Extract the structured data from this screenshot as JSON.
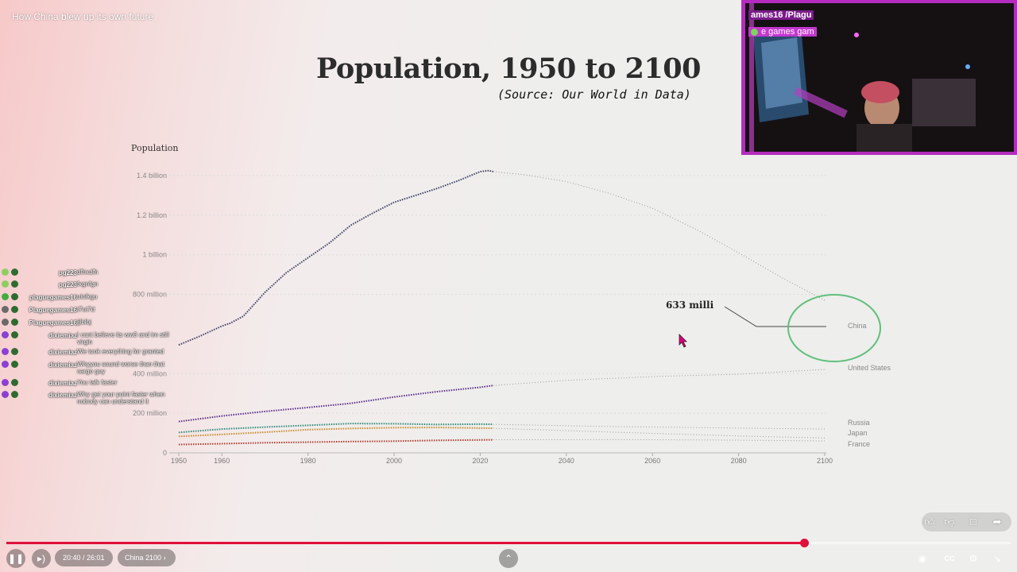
{
  "video": {
    "title": "How China blew up its own future",
    "time": "20:40 / 26:01",
    "chapter": "China 2100",
    "progress_fraction": 0.794
  },
  "slide": {
    "title": "Population, 1950 to 2100",
    "source": "(Source: Our World in Data)",
    "annotation": "633 milli"
  },
  "chart_data": {
    "type": "line",
    "ylabel": "Population",
    "x_ticks": [
      "1950",
      "1960",
      "1980",
      "2000",
      "2020",
      "2040",
      "2060",
      "2080",
      "2100"
    ],
    "y_ticks": [
      "0",
      "200 million",
      "400 million",
      "800 million",
      "1 billion",
      "1.2 billion",
      "1.4 billion"
    ],
    "ylim": [
      0,
      1450000000
    ],
    "xlim": [
      1950,
      2100
    ],
    "projection_start": 2023,
    "series": [
      {
        "name": "China",
        "color": "#3b3f66",
        "points": [
          [
            1950,
            545
          ],
          [
            1955,
            590
          ],
          [
            1960,
            640
          ],
          [
            1962,
            655
          ],
          [
            1965,
            690
          ],
          [
            1970,
            810
          ],
          [
            1975,
            910
          ],
          [
            1980,
            985
          ],
          [
            1985,
            1060
          ],
          [
            1990,
            1150
          ],
          [
            1995,
            1210
          ],
          [
            2000,
            1265
          ],
          [
            2005,
            1300
          ],
          [
            2010,
            1335
          ],
          [
            2015,
            1375
          ],
          [
            2020,
            1420
          ],
          [
            2022,
            1425
          ],
          [
            2023,
            1420
          ]
        ],
        "projection": [
          [
            2023,
            1420
          ],
          [
            2030,
            1405
          ],
          [
            2040,
            1370
          ],
          [
            2050,
            1310
          ],
          [
            2060,
            1235
          ],
          [
            2070,
            1130
          ],
          [
            2080,
            1010
          ],
          [
            2090,
            885
          ],
          [
            2100,
            770
          ]
        ]
      },
      {
        "name": "United States",
        "color": "#5b2b8a",
        "points": [
          [
            1950,
            158
          ],
          [
            1960,
            186
          ],
          [
            1970,
            209
          ],
          [
            1980,
            229
          ],
          [
            1990,
            250
          ],
          [
            2000,
            282
          ],
          [
            2010,
            309
          ],
          [
            2020,
            331
          ],
          [
            2023,
            340
          ]
        ],
        "projection": [
          [
            2023,
            340
          ],
          [
            2040,
            366
          ],
          [
            2060,
            385
          ],
          [
            2080,
            397
          ],
          [
            2100,
            421
          ]
        ]
      },
      {
        "name": "Russia",
        "color": "#2a8a7a",
        "points": [
          [
            1950,
            103
          ],
          [
            1960,
            120
          ],
          [
            1970,
            130
          ],
          [
            1980,
            139
          ],
          [
            1990,
            148
          ],
          [
            2000,
            147
          ],
          [
            2010,
            143
          ],
          [
            2020,
            145
          ],
          [
            2023,
            144
          ]
        ],
        "projection": [
          [
            2023,
            144
          ],
          [
            2050,
            133
          ],
          [
            2080,
            125
          ],
          [
            2100,
            120
          ]
        ]
      },
      {
        "name": "Japan",
        "color": "#c68a2a",
        "points": [
          [
            1950,
            83
          ],
          [
            1960,
            93
          ],
          [
            1970,
            104
          ],
          [
            1980,
            117
          ],
          [
            1990,
            123
          ],
          [
            2000,
            127
          ],
          [
            2010,
            128
          ],
          [
            2020,
            125
          ],
          [
            2023,
            124
          ]
        ],
        "projection": [
          [
            2023,
            124
          ],
          [
            2050,
            105
          ],
          [
            2080,
            85
          ],
          [
            2100,
            75
          ]
        ]
      },
      {
        "name": "France",
        "color": "#b03a2e",
        "points": [
          [
            1950,
            42
          ],
          [
            1960,
            46
          ],
          [
            1970,
            51
          ],
          [
            1980,
            54
          ],
          [
            1990,
            57
          ],
          [
            2000,
            59
          ],
          [
            2010,
            63
          ],
          [
            2020,
            65
          ],
          [
            2023,
            66
          ]
        ],
        "projection": [
          [
            2023,
            66
          ],
          [
            2050,
            67
          ],
          [
            2080,
            64
          ],
          [
            2100,
            60
          ]
        ]
      }
    ],
    "series_unit": "million"
  },
  "chat": [
    {
      "user": "pg223",
      "badge": "#8ad05c",
      "message": "dfhxdfh"
    },
    {
      "user": "pg223",
      "badge": "#8ad05c",
      "message": "fxgnfgn"
    },
    {
      "user": "plaguegames16",
      "badge": "#3fae3f",
      "message": "uiolkgu"
    },
    {
      "user": "Plaguegames16",
      "badge": "#6a6a6a",
      "message": "t7ut7d"
    },
    {
      "user": "Plaguegames16",
      "badge": "#6a6a6a",
      "message": "jjlblbj"
    },
    {
      "user": "dixiemiaz",
      "badge": "#8c3fd6",
      "message": "I cant believe its ww3 and im still virgin"
    },
    {
      "user": "dixiemiaz",
      "badge": "#8c3fd6",
      "message": "We took everything for granted"
    },
    {
      "user": "dixiemiaz",
      "badge": "#8c3fd6",
      "message": "Whyyou sound worse than that cargo guy"
    },
    {
      "user": "dixiemiaz",
      "badge": "#8c3fd6",
      "message": "You talk faster"
    },
    {
      "user": "dixiemiaz",
      "badge": "#8c3fd6",
      "message": "Why get your point faster when nobody can understand it"
    }
  ],
  "webcam": {
    "name_text": "ames16 /Plagu",
    "game_text": "e games gam"
  },
  "icons": {
    "pause": "pause-icon",
    "volume": "volume-icon",
    "chevron": "chevron-right-icon",
    "up": "chevron-up-icon",
    "like": "thumbs-up-icon",
    "dislike": "thumbs-down-icon",
    "comment": "comment-icon",
    "share": "share-icon",
    "autoplay": "autoplay-icon",
    "captions": "captions-icon",
    "settings": "gear-icon",
    "fullscreen": "exit-fullscreen-icon",
    "cursor": "cursor-icon"
  },
  "colors": {
    "progress": "#e0103a",
    "annotation_circle": "#5fc07a",
    "webcam_border": "#b52bbf"
  }
}
